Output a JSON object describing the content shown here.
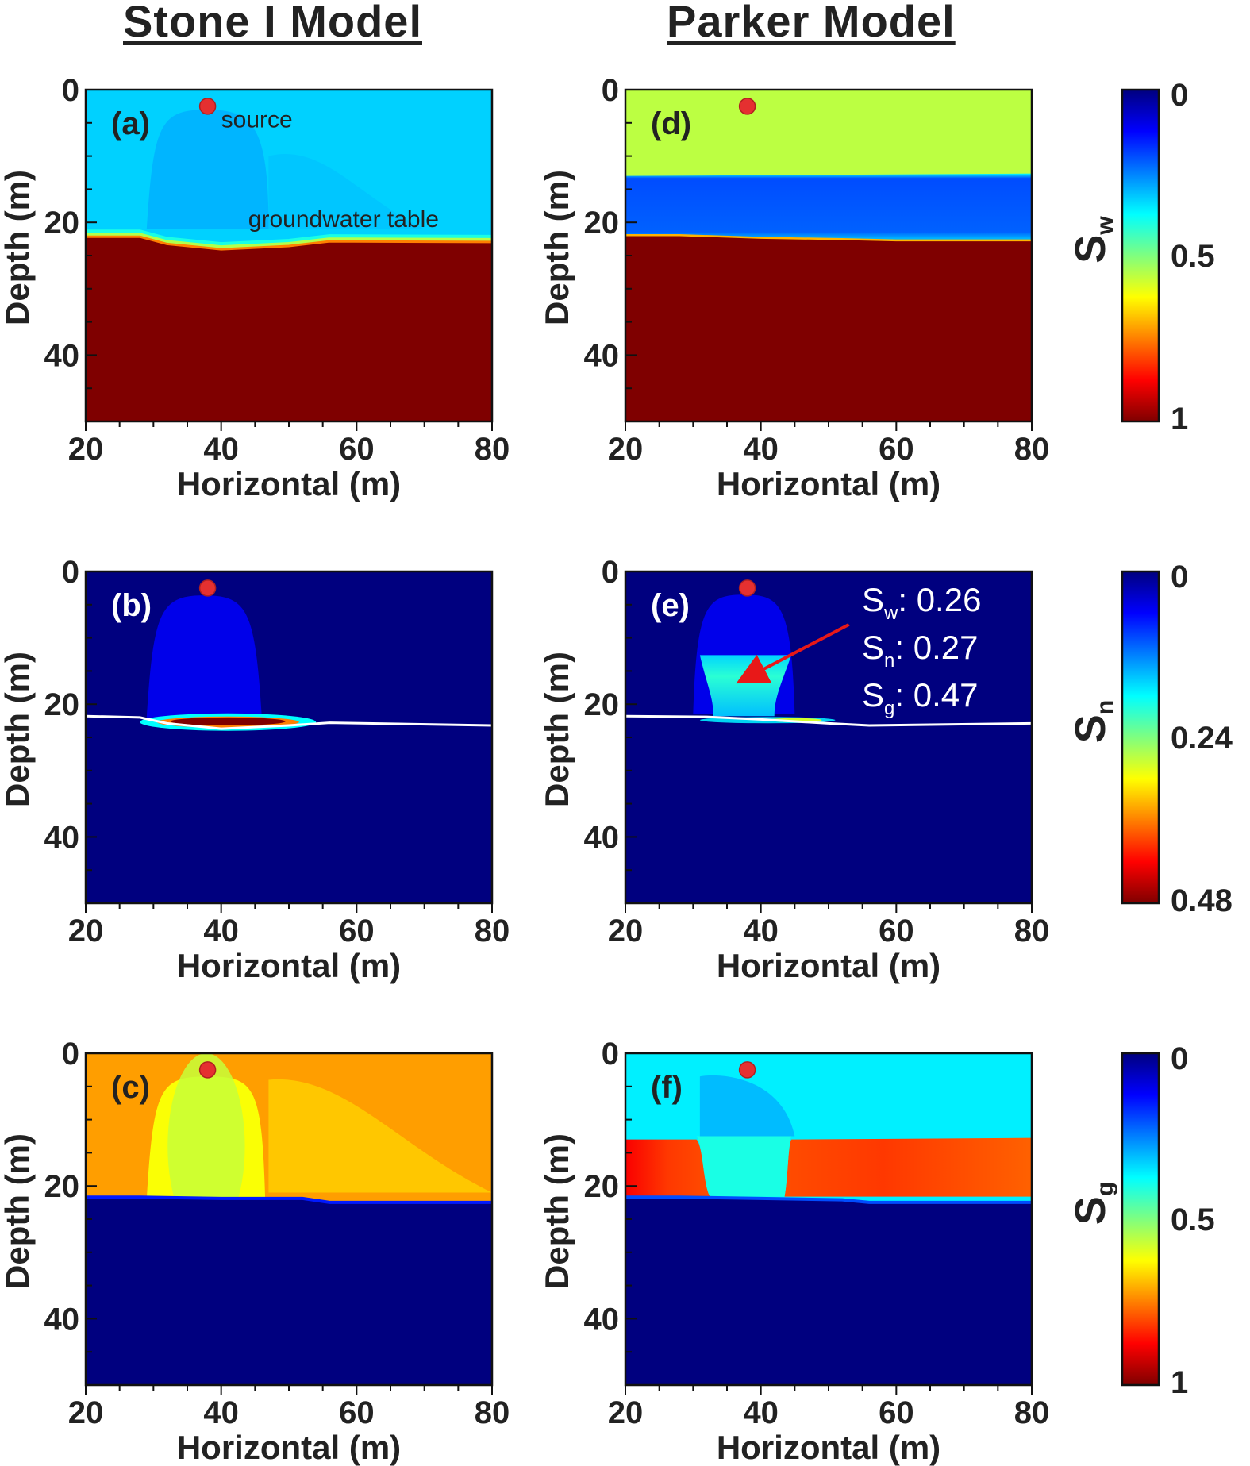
{
  "column_titles": {
    "left": "Stone I Model",
    "right": "Parker Model"
  },
  "colors": {
    "jet": [
      "#00007f",
      "#0000ff",
      "#007fff",
      "#00ffff",
      "#7fff7f",
      "#ffff00",
      "#ff7f00",
      "#ff0000",
      "#7f0000"
    ],
    "source_marker": "#e53030",
    "annotation_arrow": "#e81818",
    "water_table_line": "#ffffff"
  },
  "chart_data": [
    {
      "id": "a",
      "type": "heatmap",
      "label": "(a)",
      "model": "Stone I Model",
      "variable": "Sw",
      "xlabel": "Horizontal (m)",
      "ylabel": "Depth (m)",
      "xlim": [
        20,
        80
      ],
      "ylim": [
        0,
        50
      ],
      "xticks": [
        "20",
        "40",
        "60",
        "80"
      ],
      "yticks": [
        "0",
        "20",
        "40"
      ],
      "upper_zone_value": 0.33,
      "plume_value": 0.28,
      "water_table": [
        [
          20,
          21.8
        ],
        [
          28,
          21.8
        ],
        [
          32,
          22.9
        ],
        [
          40,
          23.7
        ],
        [
          50,
          23.2
        ],
        [
          56,
          22.5
        ],
        [
          80,
          22.6
        ]
      ],
      "source": {
        "x": 38,
        "depth": 2.5
      },
      "annotations": [
        {
          "text": "source",
          "x": 40,
          "depth": 4.5
        },
        {
          "text": "groundwater table",
          "x": 44,
          "depth": 19.5
        }
      ]
    },
    {
      "id": "b",
      "type": "heatmap",
      "label": "(b)",
      "model": "Stone I Model",
      "variable": "Sn",
      "xlabel": "Horizontal (m)",
      "ylabel": "Depth (m)",
      "xlim": [
        20,
        80
      ],
      "ylim": [
        0,
        50
      ],
      "xticks": [
        "20",
        "40",
        "60",
        "80"
      ],
      "yticks": [
        "0",
        "20",
        "40"
      ],
      "background_value": 0.0,
      "column_value": 0.05,
      "pool_peak_value": 0.48,
      "water_table": [
        [
          20,
          21.8
        ],
        [
          28,
          22.0
        ],
        [
          32,
          22.9
        ],
        [
          40,
          23.7
        ],
        [
          50,
          23.2
        ],
        [
          56,
          22.8
        ],
        [
          80,
          23.2
        ]
      ],
      "source": {
        "x": 38,
        "depth": 2.5
      }
    },
    {
      "id": "c",
      "type": "heatmap",
      "label": "(c)",
      "model": "Stone I Model",
      "variable": "Sg",
      "xlabel": "Horizontal (m)",
      "ylabel": "Depth (m)",
      "xlim": [
        20,
        80
      ],
      "ylim": [
        0,
        50
      ],
      "xticks": [
        "20",
        "40",
        "60",
        "80"
      ],
      "yticks": [
        "0",
        "20",
        "40"
      ],
      "upper_zone_value": 0.72,
      "plume_value": 0.62,
      "saturated_value": 0.0,
      "water_table": [
        [
          20,
          21.8
        ],
        [
          28,
          21.8
        ],
        [
          40,
          22.0
        ],
        [
          52,
          22.0
        ],
        [
          56,
          22.6
        ],
        [
          80,
          22.6
        ]
      ],
      "source": {
        "x": 38,
        "depth": 2.5
      }
    },
    {
      "id": "d",
      "type": "heatmap",
      "label": "(d)",
      "model": "Parker Model",
      "variable": "Sw",
      "xlabel": "Horizontal (m)",
      "ylabel": "Depth (m)",
      "xlim": [
        20,
        80
      ],
      "ylim": [
        0,
        50
      ],
      "xticks": [
        "20",
        "40",
        "60",
        "80"
      ],
      "yticks": [
        "0",
        "20",
        "40"
      ],
      "upper_zone_value": 0.56,
      "lower_band_value": 0.2,
      "band_top_depth": 13.0,
      "water_table": [
        [
          20,
          21.8
        ],
        [
          28,
          21.8
        ],
        [
          40,
          22.2
        ],
        [
          52,
          22.4
        ],
        [
          60,
          22.6
        ],
        [
          80,
          22.6
        ]
      ],
      "source": {
        "x": 38,
        "depth": 2.5
      }
    },
    {
      "id": "e",
      "type": "heatmap",
      "label": "(e)",
      "model": "Parker Model",
      "variable": "Sn",
      "xlabel": "Horizontal (m)",
      "ylabel": "Depth (m)",
      "xlim": [
        20,
        80
      ],
      "ylim": [
        0,
        50
      ],
      "xticks": [
        "20",
        "40",
        "60",
        "80"
      ],
      "yticks": [
        "0",
        "20",
        "40"
      ],
      "background_value": 0.0,
      "pool_value": 0.27,
      "water_table": [
        [
          20,
          21.8
        ],
        [
          32,
          21.9
        ],
        [
          40,
          22.3
        ],
        [
          50,
          22.9
        ],
        [
          56,
          23.2
        ],
        [
          80,
          22.9
        ]
      ],
      "source": {
        "x": 38,
        "depth": 2.5
      },
      "saturation_readout": [
        {
          "symbol": "S",
          "sub": "w",
          "text": ": 0.26"
        },
        {
          "symbol": "S",
          "sub": "n",
          "text": ": 0.27"
        },
        {
          "symbol": "S",
          "sub": "g",
          "text": ": 0.47"
        }
      ],
      "arrow": {
        "from": {
          "x": 53,
          "depth": 8
        },
        "to": {
          "x": 38,
          "depth": 16
        }
      }
    },
    {
      "id": "f",
      "type": "heatmap",
      "label": "(f)",
      "model": "Parker Model",
      "variable": "Sg",
      "xlabel": "Horizontal (m)",
      "ylabel": "Depth (m)",
      "xlim": [
        20,
        80
      ],
      "ylim": [
        0,
        50
      ],
      "xticks": [
        "20",
        "40",
        "60",
        "80"
      ],
      "yticks": [
        "0",
        "20",
        "40"
      ],
      "upper_zone_value": 0.36,
      "band_value": 0.82,
      "band_top_depth": 13.0,
      "saturated_value": 0.0,
      "water_table": [
        [
          20,
          21.8
        ],
        [
          28,
          21.8
        ],
        [
          40,
          22.0
        ],
        [
          52,
          22.2
        ],
        [
          56,
          22.6
        ],
        [
          80,
          22.6
        ]
      ],
      "source": {
        "x": 38,
        "depth": 2.5
      }
    },
    {
      "id": "cb1",
      "type": "colorbar",
      "variable": "Sw",
      "symbol": "S",
      "sub": "w",
      "ticks": [
        "0",
        "0.5",
        "1"
      ],
      "range": [
        0,
        1
      ]
    },
    {
      "id": "cb2",
      "type": "colorbar",
      "variable": "Sn",
      "symbol": "S",
      "sub": "n",
      "ticks": [
        "0",
        "0.24",
        "0.48"
      ],
      "range": [
        0,
        0.48
      ]
    },
    {
      "id": "cb3",
      "type": "colorbar",
      "variable": "Sg",
      "symbol": "S",
      "sub": "g",
      "ticks": [
        "0",
        "0.5",
        "1"
      ],
      "range": [
        0,
        1
      ]
    }
  ]
}
